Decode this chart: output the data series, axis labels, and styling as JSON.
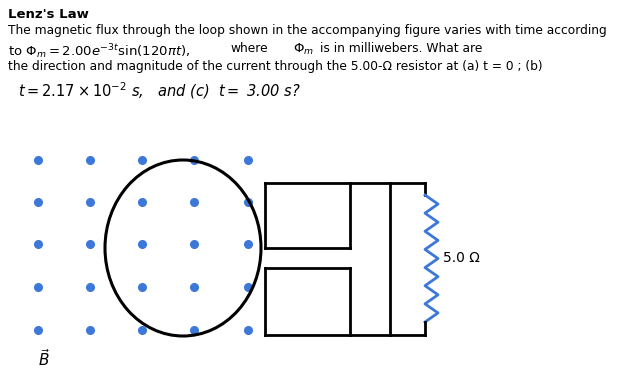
{
  "title": "Lenz's Law",
  "line1": "The magnetic flux through the loop shown in the accompanying figure varies with time according",
  "line2a": "to $\\Phi_m = 2.00e^{-3t}\\sin(120\\pi t)$,",
  "line2b": "where",
  "line2c": "$\\Phi_m$",
  "line2d": "is in milliwebers. What are",
  "line3": "the direction and magnitude of the current through the 5.00-Ω resistor at (a) t = 0 ; (b)",
  "line4": "$t = 2.17\\times 10^{-2}$ s,   and (c)  $t =$ 3.00 s?",
  "resistor_label": "5.0 Ω",
  "dot_color": "#3c78d8",
  "bg_color": "#ffffff",
  "font_size_title": 9.5,
  "font_size_body": 8.8,
  "font_size_formula": 9.5,
  "font_size_line4": 10.5
}
